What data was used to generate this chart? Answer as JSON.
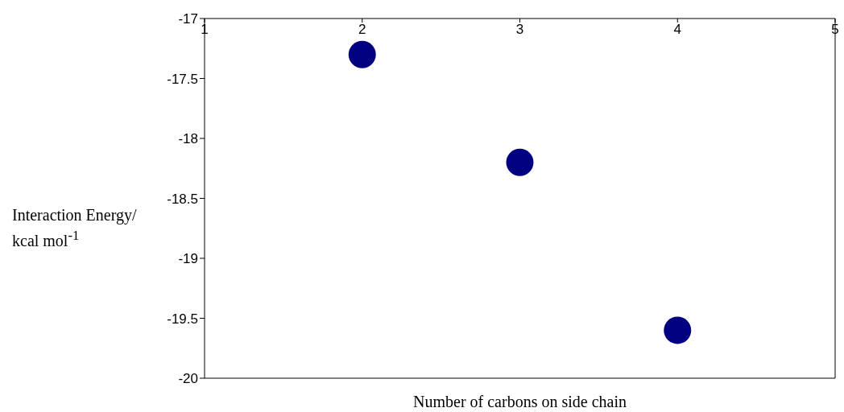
{
  "chart_data": {
    "type": "scatter",
    "xlabel": "Number of carbons on side chain",
    "ylabel": "Interaction Energy/ kcal mol$^{-1}$",
    "x": [
      2,
      3,
      4
    ],
    "series": [
      {
        "color": "#000080",
        "values": [
          -17.3,
          -18.2,
          -19.6
        ]
      }
    ],
    "xlim": [
      1,
      5
    ],
    "xticks": [
      1,
      2,
      3,
      4,
      5
    ],
    "ylim": [
      -20,
      -17
    ],
    "yticks": [
      -20,
      -19.5,
      -19,
      -18.5,
      -18,
      -17.5,
      -17
    ],
    "marker": "circle"
  }
}
